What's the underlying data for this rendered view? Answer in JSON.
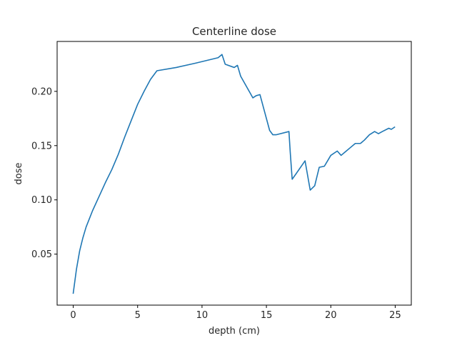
{
  "chart_data": {
    "type": "line",
    "title": "Centerline dose",
    "xlabel": "depth (cm)",
    "ylabel": "dose",
    "xlim": [
      -1.25,
      26.25
    ],
    "ylim": [
      0.003,
      0.246
    ],
    "xticks": [
      0,
      5,
      10,
      15,
      20,
      25
    ],
    "xtick_labels": [
      "0",
      "5",
      "10",
      "15",
      "20",
      "25"
    ],
    "yticks": [
      0.05,
      0.1,
      0.15,
      0.2
    ],
    "ytick_labels": [
      "0.05",
      "0.10",
      "0.15",
      "0.20"
    ],
    "grid": false,
    "legend": "none",
    "series": [
      {
        "color": "#1f77b4",
        "x": [
          0,
          0.25,
          0.5,
          0.75,
          1.0,
          1.5,
          2.0,
          2.5,
          3.0,
          3.5,
          4.0,
          4.5,
          5.0,
          5.5,
          6.0,
          6.5,
          8.0,
          9.5,
          11.25,
          11.55,
          11.8,
          12.5,
          12.75,
          13.0,
          13.95,
          14.2,
          14.5,
          15.25,
          15.5,
          15.75,
          16.75,
          16.85,
          17.0,
          17.3,
          18.0,
          18.4,
          18.75,
          19.1,
          19.5,
          19.75,
          20.0,
          20.5,
          20.8,
          21.1,
          21.5,
          21.9,
          22.3,
          22.6,
          23.0,
          23.4,
          23.7,
          24.0,
          24.5,
          24.7,
          24.95
        ],
        "y": [
          0.014,
          0.036,
          0.053,
          0.065,
          0.075,
          0.09,
          0.103,
          0.116,
          0.128,
          0.142,
          0.158,
          0.173,
          0.188,
          0.2,
          0.211,
          0.219,
          0.222,
          0.226,
          0.231,
          0.234,
          0.225,
          0.222,
          0.224,
          0.214,
          0.194,
          0.196,
          0.197,
          0.164,
          0.16,
          0.16,
          0.163,
          0.144,
          0.119,
          0.124,
          0.136,
          0.109,
          0.113,
          0.13,
          0.131,
          0.136,
          0.141,
          0.145,
          0.141,
          0.144,
          0.148,
          0.152,
          0.152,
          0.155,
          0.16,
          0.163,
          0.161,
          0.163,
          0.166,
          0.165,
          0.167
        ]
      }
    ]
  }
}
